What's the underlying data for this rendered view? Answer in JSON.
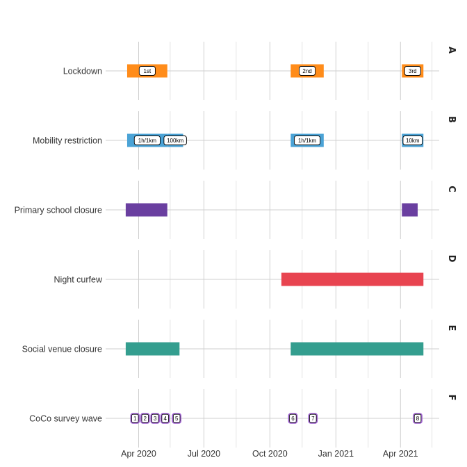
{
  "chart_data": {
    "type": "timeline",
    "title": "",
    "xlabel": "",
    "ylabel": "",
    "x_range": [
      "2020-02-15",
      "2021-05-25"
    ],
    "x_ticks": [
      {
        "date": "2020-04-01",
        "label": "Apr 2020"
      },
      {
        "date": "2020-07-01",
        "label": "Jul 2020"
      },
      {
        "date": "2020-10-01",
        "label": "Oct 2020"
      },
      {
        "date": "2021-01-01",
        "label": "Jan 2021"
      },
      {
        "date": "2021-04-01",
        "label": "Apr 2021"
      }
    ],
    "minor_grid": [
      "2020-05-15",
      "2020-08-15",
      "2020-11-15",
      "2021-02-15",
      "2021-05-15"
    ],
    "panels": [
      {
        "strip": "A",
        "label": "Lockdown",
        "color": "#FF8C1A",
        "intervals": [
          {
            "start": "2020-03-16",
            "end": "2020-05-11",
            "badge": "1st"
          },
          {
            "start": "2020-10-30",
            "end": "2020-12-15",
            "badge": "2nd"
          },
          {
            "start": "2021-04-03",
            "end": "2021-05-03",
            "badge": "3rd"
          }
        ]
      },
      {
        "strip": "B",
        "label": "Mobility restriction",
        "color": "#4BA3D6",
        "intervals": [
          {
            "start": "2020-03-16",
            "end": "2020-05-11",
            "badge": "1h/1km"
          },
          {
            "start": "2020-05-11",
            "end": "2020-06-02",
            "badge": "100km"
          },
          {
            "start": "2020-10-30",
            "end": "2020-12-15",
            "badge": "1h/1km"
          },
          {
            "start": "2021-04-03",
            "end": "2021-05-03",
            "badge": "10km"
          }
        ]
      },
      {
        "strip": "C",
        "label": "Primary school closure",
        "color": "#6A3FA0",
        "intervals": [
          {
            "start": "2020-03-14",
            "end": "2020-05-11"
          },
          {
            "start": "2021-04-03",
            "end": "2021-04-25"
          }
        ]
      },
      {
        "strip": "D",
        "label": "Night curfew",
        "color": "#E84450",
        "intervals": [
          {
            "start": "2020-10-17",
            "end": "2021-05-03"
          }
        ]
      },
      {
        "strip": "E",
        "label": "Social venue closure",
        "color": "#349E8F",
        "intervals": [
          {
            "start": "2020-03-14",
            "end": "2020-05-28"
          },
          {
            "start": "2020-10-30",
            "end": "2021-05-03"
          }
        ]
      },
      {
        "strip": "F",
        "label": "CoCo survey wave",
        "color": "#9B59D0",
        "waves": [
          {
            "date": "2020-03-27",
            "label": "1"
          },
          {
            "date": "2020-04-10",
            "label": "2"
          },
          {
            "date": "2020-04-24",
            "label": "3"
          },
          {
            "date": "2020-05-08",
            "label": "4"
          },
          {
            "date": "2020-05-24",
            "label": "5"
          },
          {
            "date": "2020-11-02",
            "label": "6"
          },
          {
            "date": "2020-11-30",
            "label": "7"
          },
          {
            "date": "2021-04-25",
            "label": "8"
          }
        ]
      }
    ]
  }
}
